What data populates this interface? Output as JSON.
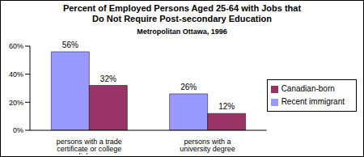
{
  "chart_data": {
    "type": "bar",
    "title": "Percent of Employed Persons Aged 25-64 with Jobs that Do Not Require Post-secondary Education",
    "subtitle": "Metropolitan Ottawa, 1996",
    "categories": [
      "persons with a trade certificate or college diploma",
      "persons with a university degree"
    ],
    "series": [
      {
        "name": "Recent immigrant",
        "color": "#9999ff",
        "values": [
          56,
          26
        ],
        "value_labels": [
          "56%",
          "26%"
        ]
      },
      {
        "name": "Canadian-born",
        "color": "#993366",
        "values": [
          32,
          12
        ],
        "value_labels": [
          "32%",
          "12%"
        ]
      }
    ],
    "ylim": [
      0,
      60
    ],
    "yticks": [
      {
        "value": 0,
        "label": "0%"
      },
      {
        "value": 20,
        "label": "20%"
      },
      {
        "value": 40,
        "label": "40%"
      },
      {
        "value": 60,
        "label": "60%"
      }
    ],
    "grid": false,
    "legend": "right",
    "data_labels": true
  }
}
